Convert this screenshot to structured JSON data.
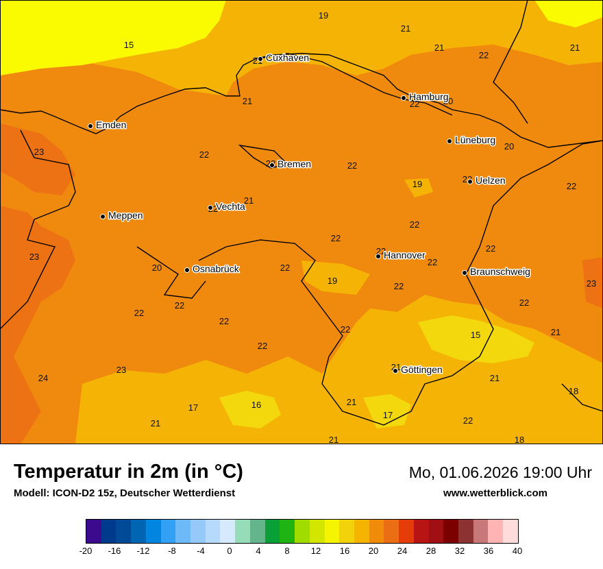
{
  "map": {
    "cities": [
      {
        "name": "Cuxhaven"
      },
      {
        "name": "Hamburg"
      },
      {
        "name": "Emden"
      },
      {
        "name": "Lüneburg"
      },
      {
        "name": "Bremen"
      },
      {
        "name": "Uelzen"
      },
      {
        "name": "Vechta"
      },
      {
        "name": "Meppen"
      },
      {
        "name": "Hannover"
      },
      {
        "name": "Osnabrück"
      },
      {
        "name": "Braunschweig"
      },
      {
        "name": "Göttingen"
      }
    ],
    "values": [
      "19",
      "21",
      "15",
      "21",
      "21",
      "22",
      "21",
      "21",
      "22",
      "20",
      "23",
      "22",
      "20",
      "22",
      "22",
      "22",
      "19",
      "22",
      "21",
      "22",
      "22",
      "22",
      "23",
      "22",
      "20",
      "22",
      "22",
      "22",
      "19",
      "22",
      "23",
      "22",
      "22",
      "22",
      "22",
      "22",
      "15",
      "21",
      "22",
      "24",
      "23",
      "21",
      "21",
      "21",
      "17",
      "16",
      "18",
      "17",
      "21",
      "22",
      "21",
      "18"
    ],
    "colors": {
      "orange": "#f08a0e",
      "deep_orange": "#ec7214",
      "light_orange": "#f5b405",
      "yellow": "#f2d80c",
      "bright_yellow": "#fbfb00"
    }
  },
  "footer": {
    "title": "Temperatur in 2m (in °C)",
    "model": "Modell: ICON-D2 15z, Deutscher Wetterdienst",
    "datetime": "Mo, 01.06.2026 19:00 Uhr",
    "website": "www.wetterblick.com"
  },
  "legend": {
    "colors": [
      "#3c0a8c",
      "#003a8c",
      "#004a98",
      "#0066b4",
      "#0085e0",
      "#32a0f5",
      "#6eb9f8",
      "#95c9f8",
      "#b5dafb",
      "#d7e9fd",
      "#96dcb9",
      "#64b48c",
      "#0aa038",
      "#1eb414",
      "#a0dc00",
      "#d2e600",
      "#f5f500",
      "#f2d20a",
      "#f5b400",
      "#f08c0a",
      "#ec6e14",
      "#e63c0a",
      "#b91414",
      "#a00f14",
      "#7d0000",
      "#8c3232",
      "#c87878",
      "#ffb4b4",
      "#ffdcdc"
    ],
    "ticks": [
      "-20",
      "-16",
      "-12",
      "-8",
      "-4",
      "0",
      "4",
      "8",
      "12",
      "16",
      "20",
      "24",
      "28",
      "32",
      "36",
      "40"
    ]
  }
}
